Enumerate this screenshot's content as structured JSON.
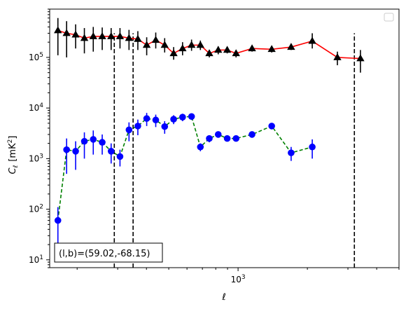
{
  "chart_data": {
    "type": "scatter",
    "title": "",
    "xlabel": "ℓ",
    "ylabel_main": "C",
    "ylabel_sub": "ℓ",
    "ylabel_unit": "[mK",
    "ylabel_unit_sup": "2",
    "ylabel_unit_end": "]",
    "xscale": "log",
    "yscale": "log",
    "xlim": [
      152,
      5000
    ],
    "ylim": [
      7,
      900000
    ],
    "x_major_tick_labels": [
      {
        "value": 1000,
        "base": "10",
        "exp": "3"
      }
    ],
    "y_major_tick_labels": [
      {
        "value": 10,
        "base": "10",
        "exp": "1"
      },
      {
        "value": 100,
        "base": "10",
        "exp": "2"
      },
      {
        "value": 1000,
        "base": "10",
        "exp": "3"
      },
      {
        "value": 10000,
        "base": "10",
        "exp": "4"
      },
      {
        "value": 100000,
        "base": "10",
        "exp": "5"
      }
    ],
    "grid": false,
    "legend": {
      "placement": "top-right",
      "entries": []
    },
    "vertical_lines": [
      {
        "x": 290,
        "color": "#000000",
        "style": "dashed"
      },
      {
        "x": 350,
        "color": "#000000",
        "style": "dashed"
      },
      {
        "x": 3200,
        "color": "#000000",
        "style": "dashed"
      }
    ],
    "annotation": {
      "text": "(l,b)=(59.02,-68.15)",
      "placement": "bottom-left"
    },
    "series": [
      {
        "color": "#ff0000",
        "marker": "triangle",
        "marker_color": "#000000",
        "errorbar_color": "#000000",
        "linestyle": "solid",
        "points": [
          {
            "x": 165,
            "y": 340000,
            "lo": 110000,
            "hi": 600000
          },
          {
            "x": 180,
            "y": 300000,
            "lo": 100000,
            "hi": 520000
          },
          {
            "x": 197,
            "y": 280000,
            "lo": 150000,
            "hi": 450000
          },
          {
            "x": 215,
            "y": 240000,
            "lo": 120000,
            "hi": 380000
          },
          {
            "x": 235,
            "y": 260000,
            "lo": 130000,
            "hi": 400000
          },
          {
            "x": 257,
            "y": 260000,
            "lo": 140000,
            "hi": 390000
          },
          {
            "x": 281,
            "y": 260000,
            "lo": 140000,
            "hi": 380000
          },
          {
            "x": 307,
            "y": 260000,
            "lo": 150000,
            "hi": 380000
          },
          {
            "x": 336,
            "y": 240000,
            "lo": 140000,
            "hi": 350000
          },
          {
            "x": 367,
            "y": 230000,
            "lo": 140000,
            "hi": 330000
          },
          {
            "x": 401,
            "y": 175000,
            "lo": 110000,
            "hi": 250000
          },
          {
            "x": 439,
            "y": 220000,
            "lo": 150000,
            "hi": 310000
          },
          {
            "x": 480,
            "y": 175000,
            "lo": 125000,
            "hi": 240000
          },
          {
            "x": 525,
            "y": 120000,
            "lo": 90000,
            "hi": 160000
          },
          {
            "x": 574,
            "y": 150000,
            "lo": 110000,
            "hi": 200000
          },
          {
            "x": 628,
            "y": 175000,
            "lo": 135000,
            "hi": 225000
          },
          {
            "x": 686,
            "y": 175000,
            "lo": 140000,
            "hi": 215000
          },
          {
            "x": 750,
            "y": 120000,
            "lo": 100000,
            "hi": 140000
          },
          {
            "x": 820,
            "y": 140000,
            "lo": 115000,
            "hi": 165000
          },
          {
            "x": 897,
            "y": 140000,
            "lo": 120000,
            "hi": 160000
          },
          {
            "x": 980,
            "y": 120000,
            "lo": 100000,
            "hi": 140000
          },
          {
            "x": 1150,
            "y": 150000,
            "lo": 130000,
            "hi": 170000
          },
          {
            "x": 1400,
            "y": 145000,
            "lo": 125000,
            "hi": 165000
          },
          {
            "x": 1700,
            "y": 160000,
            "lo": 140000,
            "hi": 180000
          },
          {
            "x": 2100,
            "y": 210000,
            "lo": 150000,
            "hi": 300000
          },
          {
            "x": 2700,
            "y": 100000,
            "lo": 70000,
            "hi": 130000
          },
          {
            "x": 3400,
            "y": 95000,
            "lo": 50000,
            "hi": 140000
          }
        ]
      },
      {
        "color": "#008000",
        "marker": "circle",
        "marker_color": "#0000ff",
        "errorbar_color": "#0000ff",
        "linestyle": "dashed",
        "points": [
          {
            "x": 165,
            "y": 60,
            "lo": 20,
            "hi": 110
          },
          {
            "x": 180,
            "y": 1500,
            "lo": 500,
            "hi": 2500
          },
          {
            "x": 197,
            "y": 1400,
            "lo": 600,
            "hi": 2200
          },
          {
            "x": 215,
            "y": 2200,
            "lo": 1000,
            "hi": 3300
          },
          {
            "x": 235,
            "y": 2400,
            "lo": 1200,
            "hi": 3600
          },
          {
            "x": 257,
            "y": 2100,
            "lo": 1200,
            "hi": 3000
          },
          {
            "x": 281,
            "y": 1400,
            "lo": 800,
            "hi": 2000
          },
          {
            "x": 307,
            "y": 1100,
            "lo": 700,
            "hi": 1500
          },
          {
            "x": 336,
            "y": 3700,
            "lo": 2200,
            "hi": 5200
          },
          {
            "x": 367,
            "y": 4400,
            "lo": 2900,
            "hi": 5900
          },
          {
            "x": 401,
            "y": 6200,
            "lo": 4400,
            "hi": 8000
          },
          {
            "x": 439,
            "y": 5800,
            "lo": 4200,
            "hi": 7400
          },
          {
            "x": 480,
            "y": 4300,
            "lo": 3100,
            "hi": 5500
          },
          {
            "x": 525,
            "y": 6000,
            "lo": 4800,
            "hi": 7200
          },
          {
            "x": 574,
            "y": 6600,
            "lo": 5500,
            "hi": 7700
          },
          {
            "x": 628,
            "y": 6800,
            "lo": 5800,
            "hi": 7800
          },
          {
            "x": 686,
            "y": 1700,
            "lo": 1400,
            "hi": 2000
          },
          {
            "x": 750,
            "y": 2500,
            "lo": 2100,
            "hi": 2900
          },
          {
            "x": 820,
            "y": 3000,
            "lo": 2600,
            "hi": 3400
          },
          {
            "x": 897,
            "y": 2500,
            "lo": 2200,
            "hi": 2800
          },
          {
            "x": 980,
            "y": 2500,
            "lo": 2200,
            "hi": 2800
          },
          {
            "x": 1150,
            "y": 3000,
            "lo": 2700,
            "hi": 3300
          },
          {
            "x": 1400,
            "y": 4400,
            "lo": 3900,
            "hi": 4900
          },
          {
            "x": 1700,
            "y": 1300,
            "lo": 900,
            "hi": 1700
          },
          {
            "x": 2100,
            "y": 1700,
            "lo": 1000,
            "hi": 2400
          }
        ]
      }
    ]
  }
}
